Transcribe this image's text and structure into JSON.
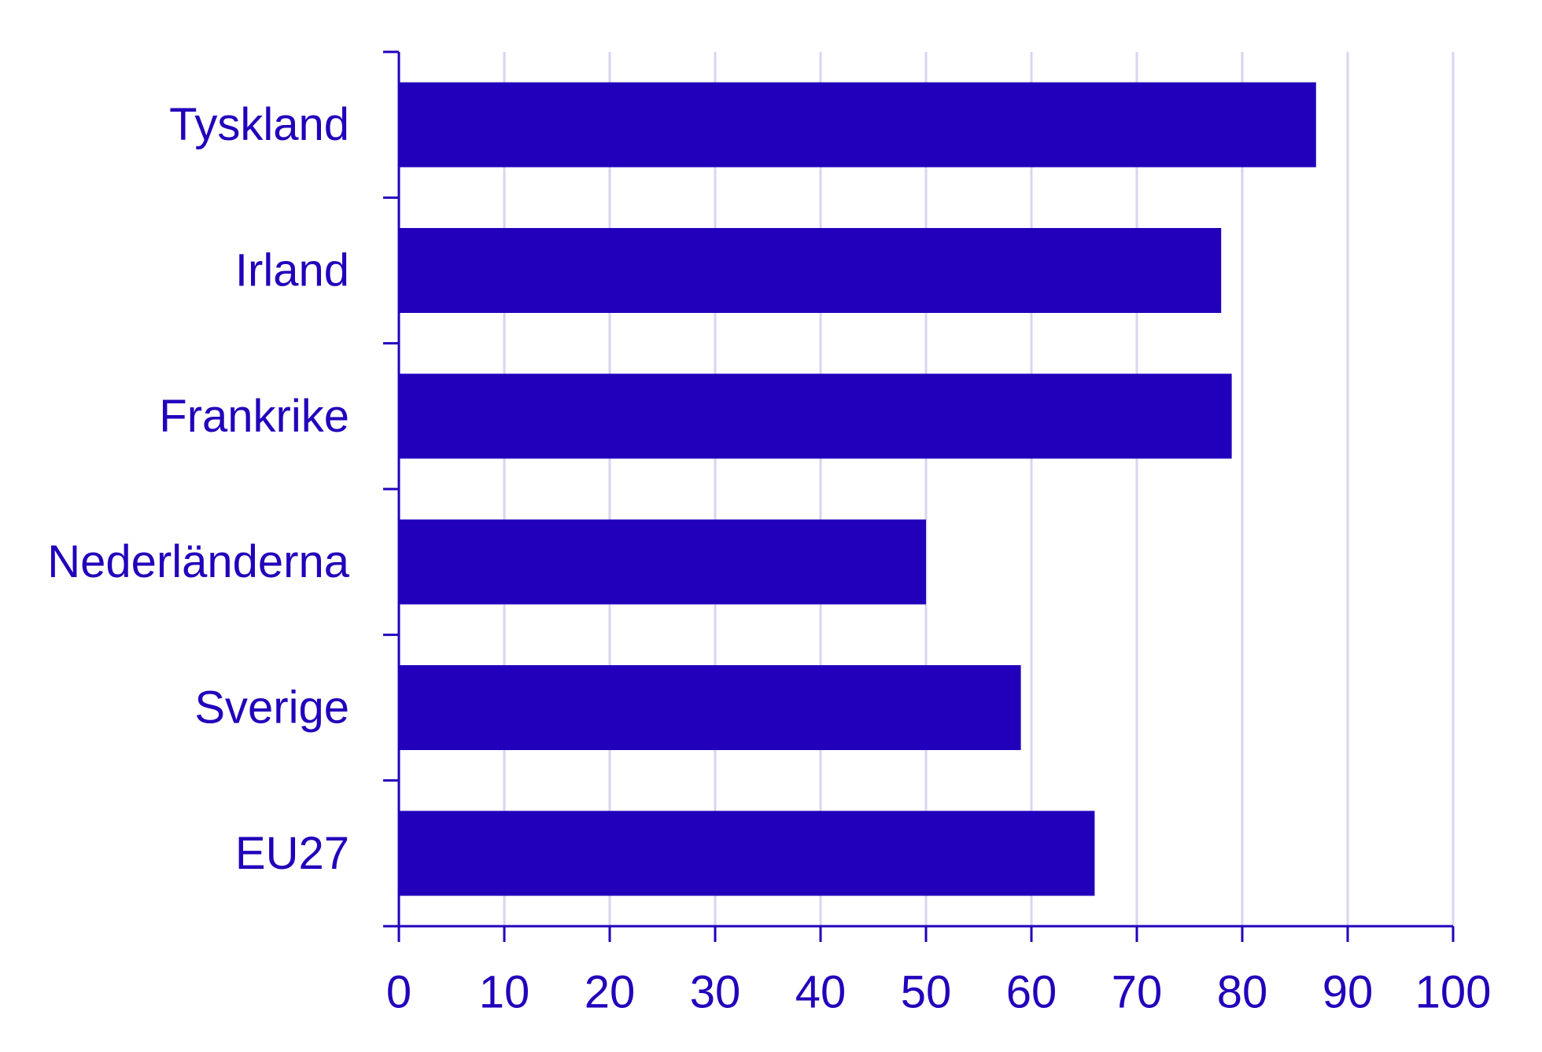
{
  "colors": {
    "bar": "#2200BB",
    "axis": "#2200BB",
    "grid": "#D6D6F0",
    "text": "#2200BB"
  },
  "chart_data": {
    "type": "bar",
    "orientation": "horizontal",
    "categories": [
      "Tyskland",
      "Irland",
      "Frankrike",
      "Nederländerna",
      "Sverige",
      "EU27"
    ],
    "values": [
      87,
      78,
      79,
      50,
      59,
      66
    ],
    "xlim": [
      0,
      100
    ],
    "x_ticks": [
      "0",
      "10",
      "20",
      "30",
      "40",
      "50",
      "60",
      "70",
      "80",
      "90",
      "100"
    ],
    "grid": "vertical",
    "legend": "none",
    "title": "",
    "xlabel": "",
    "ylabel": ""
  }
}
